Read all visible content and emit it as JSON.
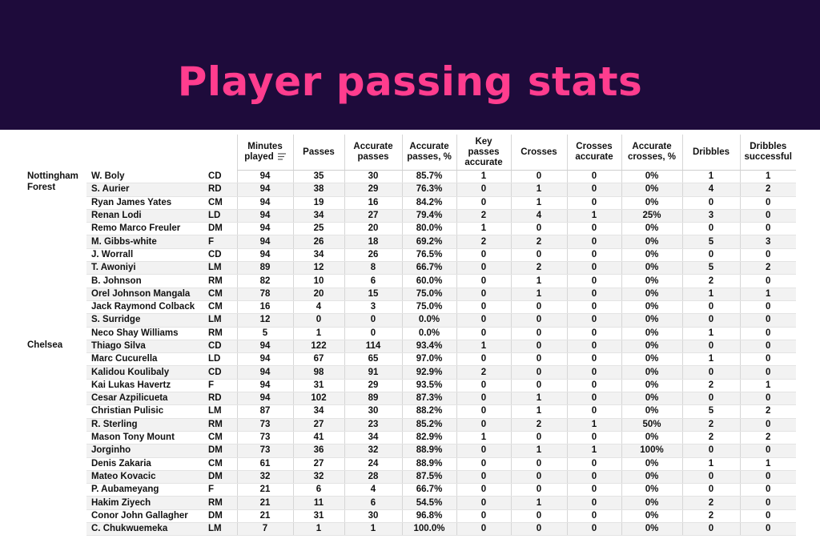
{
  "header": {
    "title": "Player passing stats"
  },
  "colors": {
    "banner": "#1e0b3b",
    "title": "#ff3d8e"
  },
  "table": {
    "columns": [
      {
        "key": "minutes",
        "label": "Minutes played",
        "sorted": true
      },
      {
        "key": "passes",
        "label": "Passes"
      },
      {
        "key": "acc_passes",
        "label": "Accurate passes"
      },
      {
        "key": "acc_pct",
        "label": "Accurate passes, %"
      },
      {
        "key": "key_acc",
        "label": "Key passes accurate"
      },
      {
        "key": "crosses",
        "label": "Crosses"
      },
      {
        "key": "cross_acc",
        "label": "Crosses accurate"
      },
      {
        "key": "cross_pct",
        "label": "Accurate crosses, %"
      },
      {
        "key": "dribbles",
        "label": "Dribbles"
      },
      {
        "key": "drib_succ",
        "label": "Dribbles successful"
      }
    ],
    "teams": [
      {
        "name": "Nottingham Forest",
        "players": [
          {
            "name": "W. Boly",
            "pos": "CD",
            "values": [
              "94",
              "35",
              "30",
              "85.7%",
              "1",
              "0",
              "0",
              "0%",
              "1",
              "1"
            ]
          },
          {
            "name": "S. Aurier",
            "pos": "RD",
            "values": [
              "94",
              "38",
              "29",
              "76.3%",
              "0",
              "1",
              "0",
              "0%",
              "4",
              "2"
            ]
          },
          {
            "name": "Ryan James Yates",
            "pos": "CM",
            "values": [
              "94",
              "19",
              "16",
              "84.2%",
              "0",
              "1",
              "0",
              "0%",
              "0",
              "0"
            ]
          },
          {
            "name": "Renan Lodi",
            "pos": "LD",
            "values": [
              "94",
              "34",
              "27",
              "79.4%",
              "2",
              "4",
              "1",
              "25%",
              "3",
              "0"
            ]
          },
          {
            "name": "Remo Marco Freuler",
            "pos": "DM",
            "values": [
              "94",
              "25",
              "20",
              "80.0%",
              "1",
              "0",
              "0",
              "0%",
              "0",
              "0"
            ]
          },
          {
            "name": "M. Gibbs-white",
            "pos": "F",
            "values": [
              "94",
              "26",
              "18",
              "69.2%",
              "2",
              "2",
              "0",
              "0%",
              "5",
              "3"
            ]
          },
          {
            "name": "J. Worrall",
            "pos": "CD",
            "values": [
              "94",
              "34",
              "26",
              "76.5%",
              "0",
              "0",
              "0",
              "0%",
              "0",
              "0"
            ]
          },
          {
            "name": "T. Awoniyi",
            "pos": "LM",
            "values": [
              "89",
              "12",
              "8",
              "66.7%",
              "0",
              "2",
              "0",
              "0%",
              "5",
              "2"
            ]
          },
          {
            "name": "B. Johnson",
            "pos": "RM",
            "values": [
              "82",
              "10",
              "6",
              "60.0%",
              "0",
              "1",
              "0",
              "0%",
              "2",
              "0"
            ]
          },
          {
            "name": "Orel Johnson Mangala",
            "pos": "CM",
            "values": [
              "78",
              "20",
              "15",
              "75.0%",
              "0",
              "1",
              "0",
              "0%",
              "1",
              "1"
            ]
          },
          {
            "name": "Jack Raymond Colback",
            "pos": "CM",
            "values": [
              "16",
              "4",
              "3",
              "75.0%",
              "0",
              "0",
              "0",
              "0%",
              "0",
              "0"
            ]
          },
          {
            "name": "S. Surridge",
            "pos": "LM",
            "values": [
              "12",
              "0",
              "0",
              "0.0%",
              "0",
              "0",
              "0",
              "0%",
              "0",
              "0"
            ]
          },
          {
            "name": "Neco Shay Williams",
            "pos": "RM",
            "values": [
              "5",
              "1",
              "0",
              "0.0%",
              "0",
              "0",
              "0",
              "0%",
              "1",
              "0"
            ]
          }
        ]
      },
      {
        "name": "Chelsea",
        "players": [
          {
            "name": "Thiago Silva",
            "pos": "CD",
            "values": [
              "94",
              "122",
              "114",
              "93.4%",
              "1",
              "0",
              "0",
              "0%",
              "0",
              "0"
            ]
          },
          {
            "name": "Marc Cucurella",
            "pos": "LD",
            "values": [
              "94",
              "67",
              "65",
              "97.0%",
              "0",
              "0",
              "0",
              "0%",
              "1",
              "0"
            ]
          },
          {
            "name": "Kalidou Koulibaly",
            "pos": "CD",
            "values": [
              "94",
              "98",
              "91",
              "92.9%",
              "2",
              "0",
              "0",
              "0%",
              "0",
              "0"
            ]
          },
          {
            "name": "Kai Lukas Havertz",
            "pos": "F",
            "values": [
              "94",
              "31",
              "29",
              "93.5%",
              "0",
              "0",
              "0",
              "0%",
              "2",
              "1"
            ]
          },
          {
            "name": "Cesar Azpilicueta",
            "pos": "RD",
            "values": [
              "94",
              "102",
              "89",
              "87.3%",
              "0",
              "1",
              "0",
              "0%",
              "0",
              "0"
            ]
          },
          {
            "name": "Christian Pulisic",
            "pos": "LM",
            "values": [
              "87",
              "34",
              "30",
              "88.2%",
              "0",
              "1",
              "0",
              "0%",
              "5",
              "2"
            ]
          },
          {
            "name": "R. Sterling",
            "pos": "RM",
            "values": [
              "73",
              "27",
              "23",
              "85.2%",
              "0",
              "2",
              "1",
              "50%",
              "2",
              "0"
            ]
          },
          {
            "name": "Mason Tony Mount",
            "pos": "CM",
            "values": [
              "73",
              "41",
              "34",
              "82.9%",
              "1",
              "0",
              "0",
              "0%",
              "2",
              "2"
            ]
          },
          {
            "name": "Jorginho",
            "pos": "DM",
            "values": [
              "73",
              "36",
              "32",
              "88.9%",
              "0",
              "1",
              "1",
              "100%",
              "0",
              "0"
            ]
          },
          {
            "name": "Denis Zakaria",
            "pos": "CM",
            "values": [
              "61",
              "27",
              "24",
              "88.9%",
              "0",
              "0",
              "0",
              "0%",
              "1",
              "1"
            ]
          },
          {
            "name": "Mateo Kovacic",
            "pos": "DM",
            "values": [
              "32",
              "32",
              "28",
              "87.5%",
              "0",
              "0",
              "0",
              "0%",
              "0",
              "0"
            ]
          },
          {
            "name": "P. Aubameyang",
            "pos": "F",
            "values": [
              "21",
              "6",
              "4",
              "66.7%",
              "0",
              "0",
              "0",
              "0%",
              "0",
              "0"
            ]
          },
          {
            "name": "Hakim Ziyech",
            "pos": "RM",
            "values": [
              "21",
              "11",
              "6",
              "54.5%",
              "0",
              "1",
              "0",
              "0%",
              "2",
              "0"
            ]
          },
          {
            "name": "Conor John Gallagher",
            "pos": "DM",
            "values": [
              "21",
              "31",
              "30",
              "96.8%",
              "0",
              "0",
              "0",
              "0%",
              "2",
              "0"
            ]
          },
          {
            "name": "C. Chukwuemeka",
            "pos": "LM",
            "values": [
              "7",
              "1",
              "1",
              "100.0%",
              "0",
              "0",
              "0",
              "0%",
              "0",
              "0"
            ]
          }
        ]
      }
    ]
  },
  "chart_data": {
    "type": "table",
    "title": "Player passing stats",
    "columns": [
      "Minutes played",
      "Passes",
      "Accurate passes",
      "Accurate passes, %",
      "Key passes accurate",
      "Crosses",
      "Crosses accurate",
      "Accurate crosses, %",
      "Dribbles",
      "Dribbles successful"
    ],
    "sorted_by": "Minutes played",
    "teams": [
      "Nottingham Forest",
      "Chelsea"
    ]
  }
}
